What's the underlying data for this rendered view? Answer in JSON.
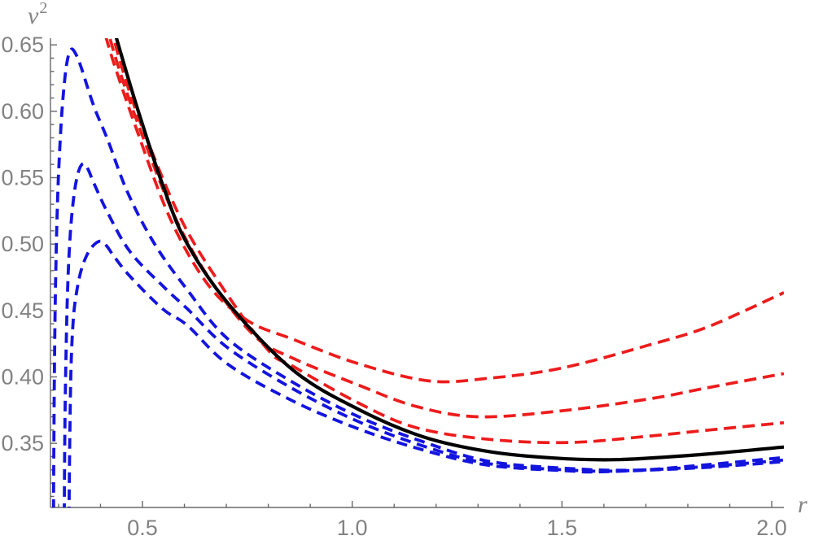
{
  "figure": {
    "background_color": "#ffffff",
    "axis_color": "#686868",
    "tick_label_color": "#828282",
    "x_axis_label": "r",
    "y_axis_label_base": "v",
    "y_axis_label_exponent": "2"
  },
  "chart_data": {
    "type": "line",
    "title": "",
    "xlabel": "r",
    "ylabel": "v^2",
    "xlim": [
      0.2807,
      2.029
    ],
    "ylim": [
      0.3017,
      0.655
    ],
    "grid": false,
    "legend": false,
    "xticks": {
      "major": [
        0.5,
        1.0,
        1.5,
        2.0
      ],
      "labels": [
        "0.5",
        "1.0",
        "1.5",
        "2.0"
      ],
      "minor_start": 0.3,
      "minor_end": 2.0,
      "minor_step": 0.1
    },
    "yticks": {
      "major": [
        0.35,
        0.4,
        0.45,
        0.5,
        0.55,
        0.6,
        0.65
      ],
      "labels": [
        "0.35",
        "0.40",
        "0.45",
        "0.50",
        "0.55",
        "0.60",
        "0.65"
      ],
      "minor_start": 0.31,
      "minor_end": 0.65,
      "minor_step": 0.01
    },
    "series": [
      {
        "name": "blue-dashed-3",
        "color": "#1414DF",
        "style": "dashed",
        "dash": [
          13,
          8
        ],
        "width": 3.8,
        "dashoffset": 9,
        "description": "blue dashed curve, lowest peak ~(0.40, 0.502), min ~0.329 near r=1.6, ends ~0.336",
        "points": [
          [
            0.325,
            0.3
          ],
          [
            0.327,
            0.36
          ],
          [
            0.33,
            0.41
          ],
          [
            0.335,
            0.443
          ],
          [
            0.342,
            0.462
          ],
          [
            0.352,
            0.478
          ],
          [
            0.365,
            0.49
          ],
          [
            0.38,
            0.498
          ],
          [
            0.399,
            0.5022
          ],
          [
            0.415,
            0.4985
          ],
          [
            0.432,
            0.4908
          ],
          [
            0.471,
            0.4755
          ],
          [
            0.549,
            0.451
          ],
          [
            0.607,
            0.4388
          ],
          [
            0.704,
            0.4094
          ],
          [
            0.859,
            0.3818
          ],
          [
            1.014,
            0.361
          ],
          [
            1.169,
            0.345
          ],
          [
            1.325,
            0.3335
          ],
          [
            1.519,
            0.3292
          ],
          [
            1.596,
            0.3286
          ],
          [
            1.829,
            0.3316
          ],
          [
            2.029,
            0.3362
          ]
        ]
      },
      {
        "name": "blue-dashed-2",
        "color": "#1414DF",
        "style": "dashed",
        "dash": [
          13,
          8
        ],
        "width": 3.8,
        "dashoffset": 5,
        "description": "blue dashed curve, middle peak ~(0.36, 0.560), min ~0.329 near r=1.63, ends ~0.337",
        "points": [
          [
            0.3137,
            0.3
          ],
          [
            0.315,
            0.36
          ],
          [
            0.318,
            0.42
          ],
          [
            0.322,
            0.47
          ],
          [
            0.328,
            0.508
          ],
          [
            0.336,
            0.535
          ],
          [
            0.346,
            0.553
          ],
          [
            0.358,
            0.5605
          ],
          [
            0.37,
            0.5565
          ],
          [
            0.384,
            0.546
          ],
          [
            0.418,
            0.523
          ],
          [
            0.471,
            0.494
          ],
          [
            0.55,
            0.468
          ],
          [
            0.607,
            0.4512
          ],
          [
            0.704,
            0.4217
          ],
          [
            0.859,
            0.391
          ],
          [
            1.014,
            0.3665
          ],
          [
            1.169,
            0.348
          ],
          [
            1.325,
            0.3347
          ],
          [
            1.519,
            0.3298
          ],
          [
            1.635,
            0.3292
          ],
          [
            1.829,
            0.3322
          ],
          [
            2.029,
            0.3374
          ]
        ]
      },
      {
        "name": "blue-dashed-1",
        "color": "#1414DF",
        "style": "dashed",
        "dash": [
          13,
          8
        ],
        "width": 3.8,
        "dashoffset": 0,
        "description": "blue dashed curve, highest peak ~(0.33, 0.648), min ~0.330 near r=1.67, ends ~0.339",
        "points": [
          [
            0.288,
            0.3
          ],
          [
            0.289,
            0.36
          ],
          [
            0.291,
            0.43
          ],
          [
            0.294,
            0.49
          ],
          [
            0.299,
            0.545
          ],
          [
            0.306,
            0.59
          ],
          [
            0.314,
            0.622
          ],
          [
            0.322,
            0.64
          ],
          [
            0.331,
            0.6468
          ],
          [
            0.342,
            0.6425
          ],
          [
            0.354,
            0.6329
          ],
          [
            0.384,
            0.604
          ],
          [
            0.418,
            0.5778
          ],
          [
            0.465,
            0.5386
          ],
          [
            0.529,
            0.5
          ],
          [
            0.607,
            0.4655
          ],
          [
            0.704,
            0.4284
          ],
          [
            0.859,
            0.3959
          ],
          [
            1.014,
            0.3702
          ],
          [
            1.169,
            0.3512
          ],
          [
            1.325,
            0.3365
          ],
          [
            1.519,
            0.331
          ],
          [
            1.674,
            0.3298
          ],
          [
            1.829,
            0.3334
          ],
          [
            2.029,
            0.3393
          ]
        ]
      },
      {
        "name": "red-dashed-bottom",
        "color": "#ED1C1C",
        "style": "dashed",
        "dash": [
          15,
          8
        ],
        "width": 3.7,
        "dashoffset": 0,
        "description": "red dashed curve closest to black, min ~0.351 at r~1.52, ends ~0.366",
        "points": [
          [
            0.423,
            0.665
          ],
          [
            0.45,
            0.634
          ],
          [
            0.497,
            0.59
          ],
          [
            0.59,
            0.52
          ],
          [
            0.685,
            0.47
          ],
          [
            0.8,
            0.42
          ],
          [
            0.859,
            0.408
          ],
          [
            1.014,
            0.3805
          ],
          [
            1.15,
            0.362
          ],
          [
            1.325,
            0.353
          ],
          [
            1.519,
            0.3506
          ],
          [
            1.713,
            0.3556
          ],
          [
            1.85,
            0.36
          ],
          [
            2.029,
            0.3655
          ]
        ]
      },
      {
        "name": "red-dashed-middle",
        "color": "#ED1C1C",
        "style": "dashed",
        "dash": [
          15,
          8
        ],
        "width": 3.7,
        "dashoffset": 5,
        "description": "middle red dashed curve, min ~0.370 at r~1.30, ends ~0.402",
        "points": [
          [
            0.414,
            0.665
          ],
          [
            0.44,
            0.636
          ],
          [
            0.49,
            0.59
          ],
          [
            0.578,
            0.52
          ],
          [
            0.668,
            0.47
          ],
          [
            0.77,
            0.43
          ],
          [
            0.859,
            0.414
          ],
          [
            1.014,
            0.394
          ],
          [
            1.15,
            0.378
          ],
          [
            1.3,
            0.37
          ],
          [
            1.5,
            0.3745
          ],
          [
            1.713,
            0.3837
          ],
          [
            1.85,
            0.392
          ],
          [
            2.029,
            0.4025
          ]
        ]
      },
      {
        "name": "red-dashed-top",
        "color": "#ED1C1C",
        "style": "dashed",
        "dash": [
          15,
          8
        ],
        "width": 3.7,
        "dashoffset": 9,
        "description": "top red dashed curve, min ~0.397 at r~1.18, ends ~0.461",
        "points": [
          [
            0.405,
            0.665
          ],
          [
            0.43,
            0.638
          ],
          [
            0.482,
            0.59
          ],
          [
            0.565,
            0.52
          ],
          [
            0.655,
            0.47
          ],
          [
            0.75,
            0.4425
          ],
          [
            0.859,
            0.4283
          ],
          [
            1.014,
            0.41
          ],
          [
            1.183,
            0.397
          ],
          [
            1.325,
            0.399
          ],
          [
            1.5,
            0.4067
          ],
          [
            1.713,
            0.4245
          ],
          [
            1.85,
            0.438
          ],
          [
            2.029,
            0.4635
          ]
        ]
      },
      {
        "name": "black-solid",
        "color": "#000000",
        "style": "solid",
        "dash": null,
        "width": 4.2,
        "dashoffset": 0,
        "description": "solid black reference curve, min ~0.338 at r~1.63, ends ~0.347",
        "points": [
          [
            0.43,
            0.665
          ],
          [
            0.438,
            0.655
          ],
          [
            0.49,
            0.6
          ],
          [
            0.555,
            0.5386
          ],
          [
            0.607,
            0.5
          ],
          [
            0.704,
            0.4553
          ],
          [
            0.859,
            0.4051
          ],
          [
            1.014,
            0.3757
          ],
          [
            1.169,
            0.3549
          ],
          [
            1.325,
            0.3438
          ],
          [
            1.48,
            0.3389
          ],
          [
            1.63,
            0.3377
          ],
          [
            1.83,
            0.3415
          ],
          [
            2.029,
            0.3472
          ]
        ]
      }
    ]
  }
}
